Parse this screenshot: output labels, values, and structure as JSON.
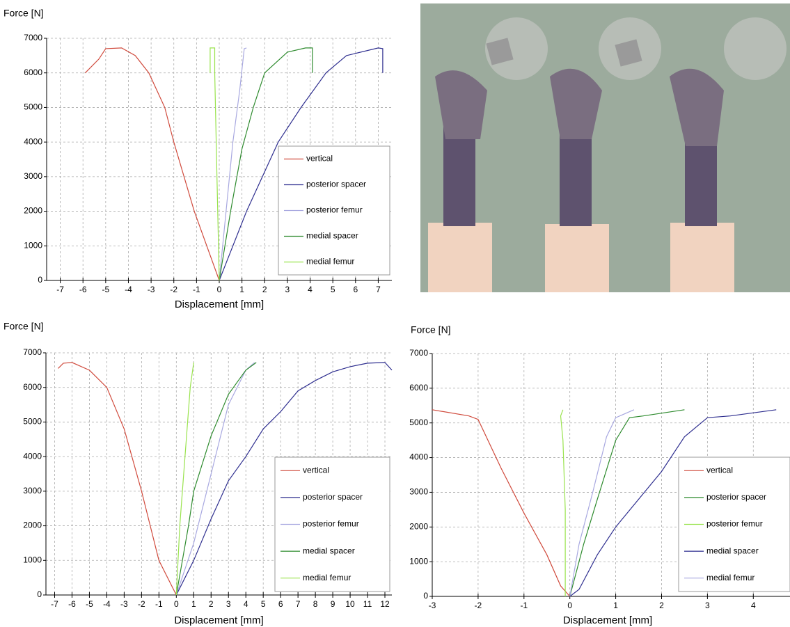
{
  "chart_data": [
    {
      "type": "line",
      "y_label": "Force [N]",
      "x_label": "Displacement [mm]",
      "xlim": [
        -7.6,
        7.6
      ],
      "ylim": [
        0,
        7000
      ],
      "xticks": [
        -7,
        -6,
        -5,
        -4,
        -3,
        -2,
        -1,
        0,
        1,
        2,
        3,
        4,
        5,
        6,
        7
      ],
      "yticks": [
        0,
        1000,
        2000,
        3000,
        4000,
        5000,
        6000,
        7000
      ],
      "grid": true,
      "legend": "lower right",
      "series": [
        {
          "name": "vertical",
          "color": "#d04a3c",
          "x": [
            0,
            -1.1,
            -2,
            -2.4,
            -3.1,
            -3.7,
            -4.3,
            -5,
            -5.3,
            -5.9
          ],
          "values": [
            0,
            2000,
            4000,
            5000,
            6000,
            6500,
            6720,
            6700,
            6400,
            6000
          ]
        },
        {
          "name": "posterior spacer",
          "color": "#2e2e8f",
          "x": [
            0,
            1.2,
            2.6,
            3.6,
            4.7,
            5.6,
            7,
            7.2,
            7.2
          ],
          "values": [
            0,
            2000,
            4000,
            5000,
            6000,
            6500,
            6720,
            6700,
            6000
          ]
        },
        {
          "name": "posterior femur",
          "color": "#a8a8e0",
          "x": [
            0,
            0.3,
            0.6,
            0.9,
            1.1,
            1.2
          ],
          "values": [
            0,
            2000,
            4000,
            5500,
            6700,
            6720
          ]
        },
        {
          "name": "medial spacer",
          "color": "#2e8b2e",
          "x": [
            0,
            0.5,
            1,
            1.5,
            2,
            3,
            3.8,
            4.1,
            4.1
          ],
          "values": [
            0,
            2000,
            3800,
            5000,
            6000,
            6600,
            6720,
            6720,
            6000
          ]
        },
        {
          "name": "medial femur",
          "color": "#99e34d",
          "x": [
            0,
            -0.1,
            -0.2,
            -0.2,
            -0.4,
            -0.4
          ],
          "values": [
            0,
            3000,
            6000,
            6720,
            6720,
            6000
          ]
        }
      ]
    },
    {
      "type": "line",
      "y_label": "Force [N]",
      "x_label": "Displacement [mm]",
      "xlim": [
        -7.5,
        12.4
      ],
      "ylim": [
        0,
        7000
      ],
      "xticks": [
        -7,
        -6,
        -5,
        -4,
        -3,
        -2,
        -1,
        0,
        1,
        2,
        3,
        4,
        5,
        6,
        7,
        8,
        9,
        10,
        11,
        12
      ],
      "yticks": [
        0,
        1000,
        2000,
        3000,
        4000,
        5000,
        6000,
        7000
      ],
      "grid": true,
      "legend": "lower right",
      "series": [
        {
          "name": "vertical",
          "color": "#d04a3c",
          "x": [
            0,
            -1,
            -2,
            -3,
            -4,
            -5,
            -6,
            -6.5,
            -6.8
          ],
          "values": [
            0,
            1000,
            3000,
            4800,
            6000,
            6500,
            6720,
            6700,
            6550
          ]
        },
        {
          "name": "posterior spacer",
          "color": "#2e2e8f",
          "x": [
            0,
            1,
            2,
            3,
            4,
            5,
            6,
            7,
            8,
            9,
            10,
            11,
            12,
            12.4
          ],
          "values": [
            0,
            1000,
            2200,
            3300,
            4000,
            4800,
            5300,
            5900,
            6200,
            6450,
            6600,
            6700,
            6720,
            6500
          ]
        },
        {
          "name": "posterior femur",
          "color": "#a8a8e0",
          "x": [
            0,
            1,
            2,
            3,
            4,
            4.5
          ],
          "values": [
            0,
            1500,
            3500,
            5500,
            6500,
            6720
          ]
        },
        {
          "name": "medial spacer",
          "color": "#2e8b2e",
          "x": [
            0,
            0.7,
            1,
            1.5,
            2,
            3,
            4,
            4.6
          ],
          "values": [
            0,
            2000,
            3000,
            3800,
            4600,
            5800,
            6500,
            6720
          ]
        },
        {
          "name": "medial femur",
          "color": "#99e34d",
          "x": [
            0,
            0.2,
            0.5,
            0.8,
            1
          ],
          "values": [
            0,
            2000,
            4000,
            6000,
            6720
          ]
        }
      ]
    },
    {
      "type": "line",
      "y_label": "Force [N]",
      "x_label": "Displacement [mm]",
      "xlim": [
        -3,
        4.8
      ],
      "ylim": [
        0,
        7000
      ],
      "xticks": [
        -3,
        -2,
        -1,
        0,
        1,
        2,
        3,
        4
      ],
      "yticks": [
        0,
        1000,
        2000,
        3000,
        4000,
        5000,
        6000,
        7000
      ],
      "grid": true,
      "legend": "lower right",
      "series": [
        {
          "name": "vertical",
          "color": "#d04a3c",
          "x": [
            0,
            -0.2,
            -0.5,
            -1,
            -1.5,
            -2,
            -2.2,
            -3
          ],
          "values": [
            0,
            300,
            1200,
            2400,
            3700,
            5100,
            5200,
            5380
          ]
        },
        {
          "name": "posterior spacer",
          "color": "#2e8b2e",
          "x": [
            0,
            0.3,
            0.6,
            1,
            1.3,
            1.6,
            2.5
          ],
          "values": [
            0,
            1500,
            2800,
            4500,
            5150,
            5200,
            5380
          ]
        },
        {
          "name": "posterior femur",
          "color": "#99e34d",
          "x": [
            -0.1,
            -0.1,
            -0.15,
            -0.2,
            -0.15
          ],
          "values": [
            0,
            2500,
            4500,
            5200,
            5380
          ]
        },
        {
          "name": "medial spacer",
          "color": "#2e2e8f",
          "x": [
            0,
            0.2,
            0.6,
            1,
            2,
            2.5,
            3,
            3.5,
            4.5
          ],
          "values": [
            0,
            200,
            1200,
            2000,
            3600,
            4600,
            5150,
            5200,
            5380
          ]
        },
        {
          "name": "medial femur",
          "color": "#a8a8e0",
          "x": [
            0,
            0.2,
            0.5,
            0.8,
            1,
            1.4
          ],
          "values": [
            0,
            1500,
            3000,
            4600,
            5150,
            5380
          ]
        }
      ]
    }
  ]
}
